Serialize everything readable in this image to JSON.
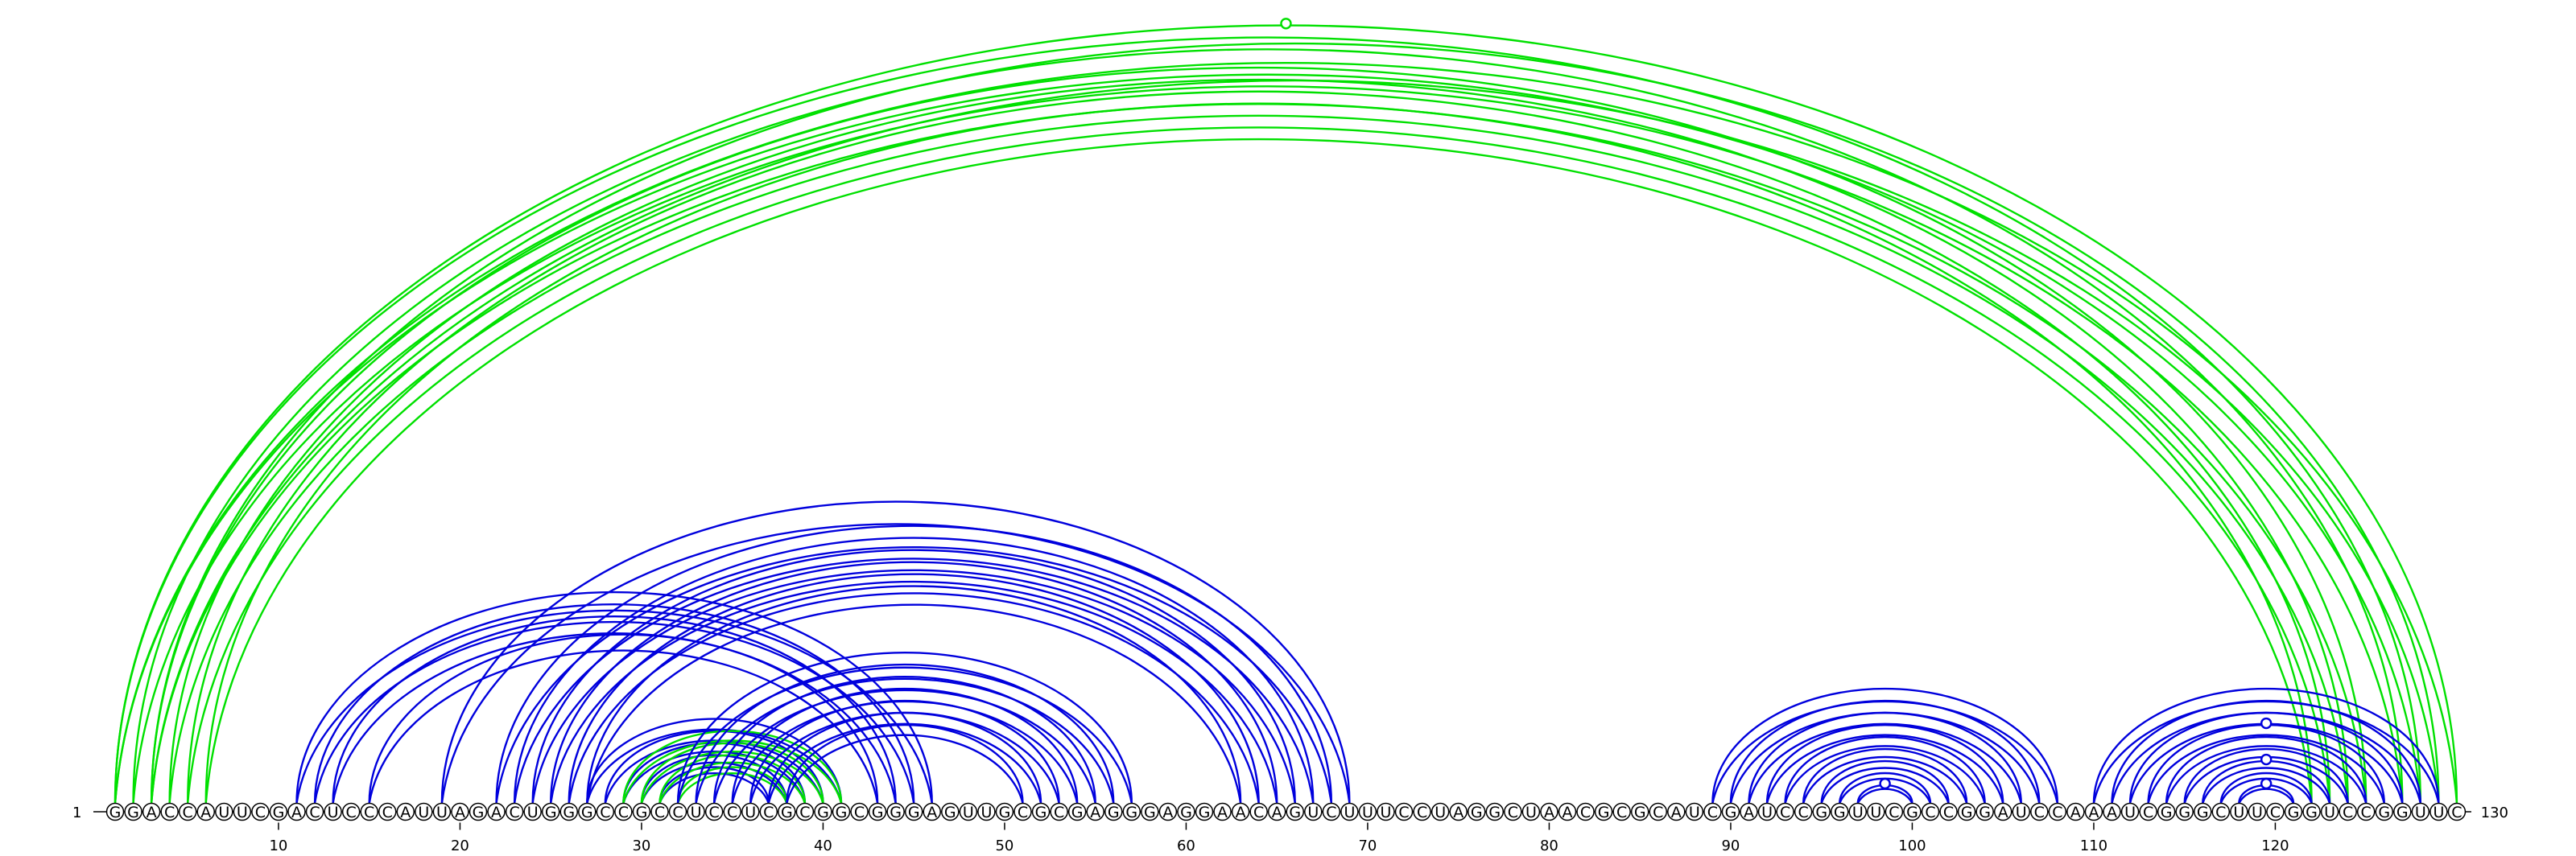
{
  "sequence": "GGACCAUUCGACUCCCAUUAGACUGGGCCGCCUCCUCGCGGCGGGAGUUGCGCGAGGGAGGAACAGUCUUUCCUAGGCUAACGCGCAUCGAUCCGGUUCGCCGGAUCCAAAUCGGGCUUCGGUCCGGUUC",
  "start_label": "1",
  "end_label": "130",
  "ticks": [
    "10",
    "20",
    "30",
    "40",
    "50",
    "60",
    "70",
    "80",
    "90",
    "100",
    "110",
    "120"
  ],
  "colors": {
    "blue": "#0000dd",
    "green": "#00e000",
    "text": "#000000"
  },
  "arc_groups": [
    {
      "color": "green",
      "pairs": [
        [
          1,
          128
        ],
        [
          2,
          127
        ],
        [
          3,
          125
        ],
        [
          4,
          124
        ],
        [
          5,
          123
        ],
        [
          6,
          122
        ]
      ]
    },
    {
      "color": "green",
      "pairs": [
        [
          1,
          130
        ],
        [
          3,
          129
        ]
      ]
    },
    {
      "color": "blue",
      "pairs": [
        [
          11,
          46
        ],
        [
          12,
          45
        ],
        [
          13,
          44
        ],
        [
          15,
          43
        ]
      ]
    },
    {
      "color": "blue",
      "pairs": [
        [
          19,
          69
        ],
        [
          22,
          68
        ],
        [
          23,
          67
        ],
        [
          24,
          66
        ],
        [
          25,
          65
        ],
        [
          26,
          64
        ],
        [
          27,
          63
        ]
      ]
    },
    {
      "color": "blue",
      "pairs": [
        [
          27,
          41
        ],
        [
          28,
          40
        ],
        [
          29,
          39
        ],
        [
          30,
          38
        ],
        [
          31,
          37
        ]
      ]
    },
    {
      "color": "green",
      "pairs": [
        [
          29,
          41
        ],
        [
          30,
          40
        ],
        [
          31,
          39
        ],
        [
          32,
          38
        ]
      ]
    },
    {
      "color": "blue",
      "pairs": [
        [
          32,
          57
        ],
        [
          33,
          56
        ],
        [
          34,
          55
        ],
        [
          35,
          54
        ],
        [
          36,
          53
        ],
        [
          37,
          52
        ],
        [
          38,
          51
        ]
      ]
    },
    {
      "color": "blue",
      "pairs": [
        [
          89,
          108
        ],
        [
          90,
          107
        ],
        [
          91,
          106
        ],
        [
          92,
          105
        ],
        [
          93,
          104
        ],
        [
          94,
          103
        ],
        [
          95,
          102
        ],
        [
          96,
          101
        ],
        [
          97,
          100
        ]
      ]
    },
    {
      "color": "blue",
      "pairs": [
        [
          110,
          129
        ],
        [
          111,
          128
        ],
        [
          112,
          127
        ],
        [
          113,
          126
        ],
        [
          114,
          125
        ],
        [
          115,
          124
        ],
        [
          116,
          123
        ],
        [
          117,
          122
        ],
        [
          118,
          121
        ]
      ]
    }
  ]
}
